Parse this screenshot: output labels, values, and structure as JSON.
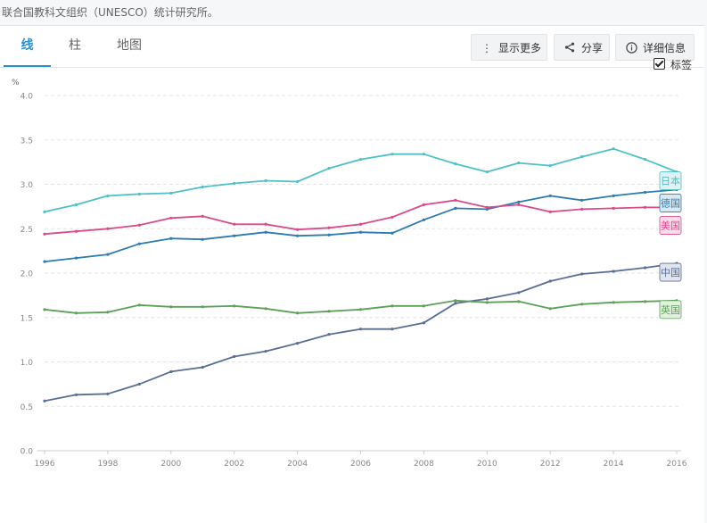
{
  "source_note": "联合国教科文组织（UNESCO）统计研究所。",
  "tabs": [
    {
      "label": "线",
      "active": true
    },
    {
      "label": "柱",
      "active": false
    },
    {
      "label": "地图",
      "active": false
    }
  ],
  "toolbar": {
    "more_label": "显示更多",
    "share_label": "分享",
    "details_label": "详细信息",
    "more_icon": "more-vertical-icon",
    "share_icon": "share-icon",
    "details_icon": "info-icon"
  },
  "labels_toggle": {
    "label": "标签",
    "checked": true
  },
  "chart_data": {
    "type": "line",
    "ylabel": "%",
    "ylim": [
      0,
      4
    ],
    "yticks": [
      "0.0",
      "0.5",
      "1.0",
      "1.5",
      "2.0",
      "2.5",
      "3.0",
      "3.5",
      "4.0"
    ],
    "xlim": [
      1996,
      2016
    ],
    "xticks": [
      "1996",
      "1998",
      "2000",
      "2002",
      "2004",
      "2006",
      "2008",
      "2010",
      "2012",
      "2014",
      "2016"
    ],
    "grid": true,
    "x": [
      1996,
      1997,
      1998,
      1999,
      2000,
      2001,
      2002,
      2003,
      2004,
      2005,
      2006,
      2007,
      2008,
      2009,
      2010,
      2011,
      2012,
      2013,
      2014,
      2015,
      2016
    ],
    "series": [
      {
        "name": "日本",
        "color": "#4fc0c8",
        "label_bg": "#dff3f5",
        "values": [
          2.69,
          2.77,
          2.87,
          2.89,
          2.9,
          2.97,
          3.01,
          3.04,
          3.03,
          3.18,
          3.28,
          3.34,
          3.34,
          3.23,
          3.14,
          3.24,
          3.21,
          3.31,
          3.4,
          3.28,
          3.14
        ]
      },
      {
        "name": "德国",
        "color": "#2e7bb0",
        "label_bg": "#d8e9f4",
        "values": [
          2.13,
          2.17,
          2.21,
          2.33,
          2.39,
          2.38,
          2.42,
          2.46,
          2.42,
          2.43,
          2.46,
          2.45,
          2.6,
          2.73,
          2.72,
          2.8,
          2.87,
          2.82,
          2.87,
          2.91,
          2.94
        ]
      },
      {
        "name": "美国",
        "color": "#d94b8c",
        "label_bg": "#f8dcea",
        "values": [
          2.44,
          2.47,
          2.5,
          2.54,
          2.62,
          2.64,
          2.55,
          2.55,
          2.49,
          2.51,
          2.55,
          2.63,
          2.77,
          2.82,
          2.74,
          2.77,
          2.69,
          2.72,
          2.73,
          2.74,
          2.74
        ]
      },
      {
        "name": "中国",
        "color": "#5a6e94",
        "label_bg": "#e0e4ee",
        "values": [
          0.56,
          0.63,
          0.64,
          0.75,
          0.89,
          0.94,
          1.06,
          1.12,
          1.21,
          1.31,
          1.37,
          1.37,
          1.44,
          1.66,
          1.71,
          1.78,
          1.91,
          1.99,
          2.02,
          2.06,
          2.11
        ]
      },
      {
        "name": "英国",
        "color": "#5ea05a",
        "label_bg": "#e2f1df",
        "values": [
          1.59,
          1.55,
          1.56,
          1.64,
          1.62,
          1.62,
          1.63,
          1.6,
          1.55,
          1.57,
          1.59,
          1.63,
          1.63,
          1.69,
          1.67,
          1.68,
          1.6,
          1.65,
          1.67,
          1.68,
          1.69
        ]
      }
    ]
  }
}
